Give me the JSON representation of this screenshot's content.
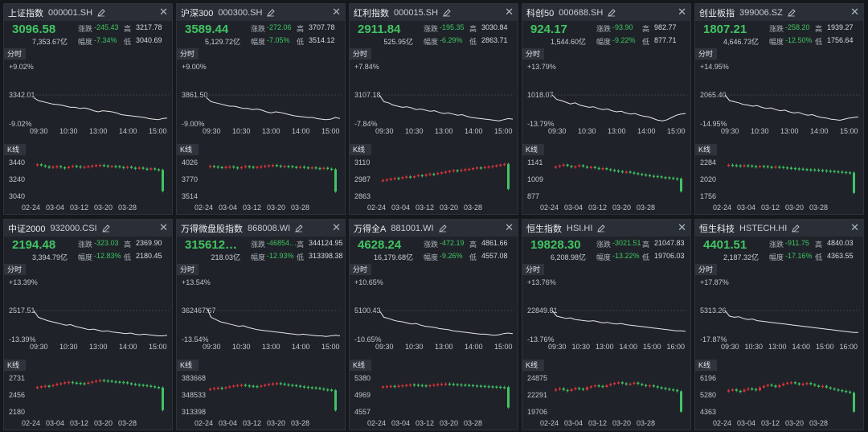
{
  "colors": {
    "up": "#e0323a",
    "down": "#41c463",
    "line": "#e6e6e6"
  },
  "labels": {
    "change": "涨跌",
    "amplitude": "幅度",
    "high": "高",
    "low": "低",
    "intraday": "分时",
    "kline": "K线"
  },
  "cards": [
    {
      "name": "上证指数",
      "code": "000001.SH",
      "price": "3096.58",
      "change": "-245.43",
      "amount": "7,353.67亿",
      "amplitude": "-7.34%",
      "high": "3217.78",
      "low": "3040.69",
      "intraday": {
        "top": "+9.02%",
        "mid": "3342.01",
        "bottom": "-9.02%",
        "times": [
          "09:30",
          "10:30",
          "13:00",
          "14:00",
          "15:00"
        ],
        "line": [
          0.55,
          0.6,
          0.62,
          0.64,
          0.66,
          0.67,
          0.68,
          0.7,
          0.72,
          0.72,
          0.74,
          0.73,
          0.75,
          0.78,
          0.8,
          0.78,
          0.79,
          0.8,
          0.82,
          0.85,
          0.86,
          0.87,
          0.88,
          0.89,
          0.9,
          0.92,
          0.93,
          0.94,
          0.92,
          0.91
        ]
      },
      "kline": {
        "high": "3440",
        "mid": "3240",
        "low": "3040",
        "dates": [
          "02-24",
          "03-04",
          "03-12",
          "03-20",
          "03-28"
        ],
        "values": [
          3420,
          3405,
          3395,
          3380,
          3392,
          3398,
          3385,
          3375,
          3390,
          3402,
          3396,
          3385,
          3392,
          3398,
          3405,
          3410,
          3412,
          3405,
          3395,
          3400,
          3398,
          3388,
          3385,
          3392,
          3380,
          3378,
          3382,
          3370,
          3365,
          3372,
          3362,
          3355,
          3108
        ]
      }
    },
    {
      "name": "沪深300",
      "code": "000300.SH",
      "price": "3589.44",
      "change": "-272.06",
      "amount": "5,129.72亿",
      "amplitude": "-7.05%",
      "high": "3707.78",
      "low": "3514.12",
      "intraday": {
        "top": "+9.00%",
        "mid": "3861.50",
        "bottom": "-9.00%",
        "times": [
          "09:30",
          "10:30",
          "13:00",
          "14:00",
          "15:00"
        ],
        "line": [
          0.55,
          0.62,
          0.64,
          0.66,
          0.68,
          0.7,
          0.7,
          0.72,
          0.74,
          0.74,
          0.76,
          0.75,
          0.77,
          0.8,
          0.82,
          0.8,
          0.81,
          0.83,
          0.85,
          0.87,
          0.88,
          0.89,
          0.9,
          0.9,
          0.92,
          0.93,
          0.94,
          0.93,
          0.9,
          0.92
        ]
      },
      "kline": {
        "high": "4026",
        "mid": "3770",
        "low": "3514",
        "dates": [
          "02-24",
          "03-04",
          "03-12",
          "03-20",
          "03-28"
        ],
        "values": [
          3975,
          3968,
          3960,
          3950,
          3962,
          3968,
          3955,
          3945,
          3958,
          3972,
          3965,
          3955,
          3962,
          3970,
          3978,
          3985,
          3990,
          3980,
          3970,
          3975,
          3972,
          3962,
          3958,
          3965,
          3955,
          3950,
          3955,
          3945,
          3940,
          3948,
          3935,
          3925,
          3595
        ]
      }
    },
    {
      "name": "红利指数",
      "code": "000015.SH",
      "price": "2911.84",
      "change": "-195.35",
      "amount": "525.95亿",
      "amplitude": "-6.29%",
      "high": "3030.84",
      "low": "2863.71",
      "intraday": {
        "top": "+7.84%",
        "mid": "3107.18",
        "bottom": "-7.84%",
        "times": [
          "09:30",
          "10:30",
          "13:00",
          "14:00",
          "15:00"
        ],
        "line": [
          0.5,
          0.62,
          0.64,
          0.68,
          0.7,
          0.72,
          0.71,
          0.73,
          0.76,
          0.75,
          0.77,
          0.79,
          0.78,
          0.81,
          0.83,
          0.82,
          0.84,
          0.86,
          0.85,
          0.88,
          0.9,
          0.91,
          0.92,
          0.93,
          0.94,
          0.95,
          0.96,
          0.94,
          0.92,
          0.93
        ]
      },
      "kline": {
        "high": "3110",
        "mid": "2987",
        "low": "2863",
        "dates": [
          "02-24",
          "03-04",
          "03-12",
          "03-20",
          "03-28"
        ],
        "values": [
          2985,
          2990,
          2995,
          3000,
          2998,
          3005,
          3010,
          3008,
          3012,
          3020,
          3015,
          3025,
          3030,
          3028,
          3035,
          3040,
          3045,
          3050,
          3055,
          3052,
          3058,
          3062,
          3065,
          3070,
          3075,
          3072,
          3078,
          3082,
          3085,
          3090,
          3095,
          3100,
          2920
        ]
      }
    },
    {
      "name": "科创50",
      "code": "000688.SH",
      "price": "924.17",
      "change": "-93.90",
      "amount": "1,544.60亿",
      "amplitude": "-9.22%",
      "high": "982.77",
      "low": "877.71",
      "intraday": {
        "top": "+13.79%",
        "mid": "1018.07",
        "bottom": "-13.79%",
        "times": [
          "09:30",
          "10:30",
          "13:00",
          "14:00",
          "15:00"
        ],
        "line": [
          0.5,
          0.58,
          0.6,
          0.63,
          0.66,
          0.64,
          0.68,
          0.7,
          0.72,
          0.71,
          0.74,
          0.76,
          0.75,
          0.78,
          0.8,
          0.79,
          0.82,
          0.84,
          0.83,
          0.86,
          0.88,
          0.89,
          0.92,
          0.95,
          0.96,
          0.94,
          0.9,
          0.86,
          0.84,
          0.83
        ]
      },
      "kline": {
        "high": "1141",
        "mid": "1009",
        "low": "877",
        "dates": [
          "02-24",
          "03-04",
          "03-12",
          "03-20",
          "03-28"
        ],
        "values": [
          1110,
          1118,
          1125,
          1115,
          1108,
          1112,
          1120,
          1110,
          1105,
          1108,
          1100,
          1095,
          1098,
          1090,
          1085,
          1080,
          1075,
          1070,
          1072,
          1065,
          1060,
          1055,
          1050,
          1045,
          1040,
          1038,
          1035,
          1030,
          1028,
          1025,
          1020,
          1018,
          920
        ]
      }
    },
    {
      "name": "创业板指",
      "code": "399006.SZ",
      "price": "1807.21",
      "change": "-258.20",
      "amount": "4,646.73亿",
      "amplitude": "-12.50%",
      "high": "1939.27",
      "low": "1756.64",
      "intraday": {
        "top": "+14.95%",
        "mid": "2065.40",
        "bottom": "-14.95%",
        "times": [
          "09:30",
          "10:30",
          "13:00",
          "14:00",
          "15:00"
        ],
        "line": [
          0.5,
          0.6,
          0.62,
          0.64,
          0.67,
          0.68,
          0.7,
          0.69,
          0.72,
          0.74,
          0.73,
          0.76,
          0.78,
          0.77,
          0.8,
          0.82,
          0.81,
          0.84,
          0.86,
          0.85,
          0.88,
          0.9,
          0.91,
          0.93,
          0.94,
          0.95,
          0.93,
          0.91,
          0.9,
          0.89
        ]
      },
      "kline": {
        "high": "2284",
        "mid": "2020",
        "low": "1756",
        "dates": [
          "02-24",
          "03-04",
          "03-12",
          "03-20",
          "03-28"
        ],
        "values": [
          2250,
          2245,
          2240,
          2235,
          2242,
          2238,
          2230,
          2225,
          2232,
          2228,
          2220,
          2215,
          2222,
          2218,
          2210,
          2205,
          2200,
          2195,
          2190,
          2185,
          2180,
          2178,
          2175,
          2170,
          2165,
          2160,
          2155,
          2150,
          2145,
          2140,
          2135,
          2130,
          1820
        ]
      }
    },
    {
      "name": "中证2000",
      "code": "932000.CSI",
      "price": "2194.48",
      "change": "-323.03",
      "amount": "3,394.79亿",
      "amplitude": "-12.83%",
      "high": "2369.90",
      "low": "2180.45",
      "intraday": {
        "top": "+13.39%",
        "mid": "2517.51",
        "bottom": "-13.39%",
        "times": [
          "09:30",
          "10:30",
          "13:00",
          "14:00",
          "15:00"
        ],
        "line": [
          0.5,
          0.62,
          0.65,
          0.68,
          0.7,
          0.72,
          0.74,
          0.76,
          0.75,
          0.78,
          0.8,
          0.82,
          0.84,
          0.83,
          0.85,
          0.87,
          0.86,
          0.88,
          0.89,
          0.9,
          0.91,
          0.9,
          0.92,
          0.93,
          0.92,
          0.93,
          0.94,
          0.95,
          0.95,
          0.94
        ]
      },
      "kline": {
        "high": "2731",
        "mid": "2456",
        "low": "2180",
        "dates": [
          "02-24",
          "03-04",
          "03-12",
          "03-20",
          "03-28"
        ],
        "values": [
          2590,
          2600,
          2610,
          2605,
          2620,
          2640,
          2650,
          2665,
          2670,
          2660,
          2655,
          2650,
          2645,
          2660,
          2675,
          2690,
          2700,
          2695,
          2690,
          2680,
          2675,
          2670,
          2665,
          2650,
          2640,
          2630,
          2625,
          2620,
          2610,
          2600,
          2590,
          2580,
          2220
        ]
      }
    },
    {
      "name": "万得微盘股指数",
      "code": "868008.WI",
      "price": "315612…",
      "change": "-46854…",
      "amount": "218.03亿",
      "amplitude": "-12.93%",
      "high": "344124.95",
      "low": "313398.38",
      "intraday": {
        "top": "+13.54%",
        "mid": "362467.67",
        "bottom": "-13.54%",
        "times": [
          "09:30",
          "10:30",
          "13:00",
          "14:00",
          "15:00"
        ],
        "line": [
          0.45,
          0.62,
          0.66,
          0.7,
          0.72,
          0.74,
          0.76,
          0.78,
          0.77,
          0.8,
          0.82,
          0.84,
          0.85,
          0.86,
          0.87,
          0.88,
          0.89,
          0.9,
          0.91,
          0.92,
          0.93,
          0.92,
          0.93,
          0.94,
          0.95,
          0.95,
          0.96,
          0.95,
          0.94,
          0.95
        ]
      },
      "kline": {
        "high": "383668",
        "mid": "348533",
        "low": "313398",
        "dates": [
          "02-24",
          "03-04",
          "03-12",
          "03-20",
          "03-28"
        ],
        "values": [
          362000,
          363500,
          364200,
          363000,
          365000,
          367000,
          368500,
          369500,
          370200,
          369000,
          368000,
          367500,
          366800,
          368500,
          370000,
          371500,
          372800,
          373500,
          372500,
          371000,
          370000,
          369500,
          368200,
          367000,
          366000,
          365200,
          364800,
          364000,
          362500,
          361000,
          360200,
          359000,
          318000
        ]
      }
    },
    {
      "name": "万得全A",
      "code": "881001.WI",
      "price": "4628.24",
      "change": "-472.19",
      "amount": "16,179.68亿",
      "amplitude": "-9.26%",
      "high": "4861.66",
      "low": "4557.08",
      "intraday": {
        "top": "+10.65%",
        "mid": "5100.43",
        "bottom": "-10.65%",
        "times": [
          "09:30",
          "10:30",
          "13:00",
          "14:00",
          "15:00"
        ],
        "line": [
          0.5,
          0.62,
          0.64,
          0.67,
          0.69,
          0.7,
          0.72,
          0.74,
          0.73,
          0.76,
          0.78,
          0.79,
          0.8,
          0.82,
          0.83,
          0.84,
          0.86,
          0.87,
          0.88,
          0.89,
          0.9,
          0.91,
          0.92,
          0.92,
          0.93,
          0.94,
          0.93,
          0.91,
          0.9,
          0.91
        ]
      },
      "kline": {
        "high": "5380",
        "mid": "4969",
        "low": "4557",
        "dates": [
          "02-24",
          "03-04",
          "03-12",
          "03-20",
          "03-28"
        ],
        "values": [
          5180,
          5190,
          5195,
          5185,
          5200,
          5210,
          5220,
          5230,
          5225,
          5215,
          5210,
          5205,
          5212,
          5225,
          5235,
          5245,
          5250,
          5245,
          5235,
          5230,
          5225,
          5220,
          5215,
          5205,
          5200,
          5195,
          5190,
          5185,
          5180,
          5175,
          5170,
          5165,
          4680
        ]
      }
    },
    {
      "name": "恒生指数",
      "code": "HSI.HI",
      "price": "19828.30",
      "change": "-3021.51",
      "amount": "6,208.98亿",
      "amplitude": "-13.22%",
      "high": "21047.83",
      "low": "19706.03",
      "intraday": {
        "top": "+13.76%",
        "mid": "22849.81",
        "bottom": "-13.76%",
        "times": [
          "09:30",
          "10:30",
          "13:00",
          "14:00",
          "15:00",
          "16:00"
        ],
        "line": [
          0.5,
          0.6,
          0.62,
          0.64,
          0.63,
          0.66,
          0.67,
          0.68,
          0.69,
          0.68,
          0.7,
          0.72,
          0.71,
          0.73,
          0.74,
          0.73,
          0.75,
          0.76,
          0.77,
          0.78,
          0.79,
          0.8,
          0.81,
          0.82,
          0.83,
          0.84,
          0.85,
          0.86,
          0.86,
          0.87
        ]
      },
      "kline": {
        "high": "24875",
        "mid": "22291",
        "low": "19706",
        "dates": [
          "02-24",
          "03-04",
          "03-12",
          "03-20",
          "03-28"
        ],
        "values": [
          23200,
          23350,
          23100,
          22950,
          23200,
          23400,
          23300,
          23150,
          23500,
          23650,
          23800,
          23700,
          23550,
          23800,
          24000,
          24150,
          24250,
          24100,
          23950,
          24050,
          24200,
          24000,
          23850,
          23700,
          23800,
          23650,
          23500,
          23400,
          23300,
          23200,
          23100,
          22900,
          19850
        ]
      }
    },
    {
      "name": "恒生科技",
      "code": "HSTECH.HI",
      "price": "4401.51",
      "change": "-911.75",
      "amount": "2,187.32亿",
      "amplitude": "-17.16%",
      "high": "4840.03",
      "low": "4363.55",
      "intraday": {
        "top": "+17.87%",
        "mid": "5313.26",
        "bottom": "-17.87%",
        "times": [
          "09:30",
          "10:30",
          "13:00",
          "14:00",
          "15:00",
          "16:00"
        ],
        "line": [
          0.5,
          0.6,
          0.62,
          0.61,
          0.64,
          0.66,
          0.65,
          0.68,
          0.69,
          0.7,
          0.71,
          0.72,
          0.73,
          0.74,
          0.75,
          0.76,
          0.77,
          0.78,
          0.79,
          0.8,
          0.81,
          0.82,
          0.83,
          0.84,
          0.85,
          0.86,
          0.87,
          0.88,
          0.89,
          0.89
        ]
      },
      "kline": {
        "high": "6196",
        "mid": "5280",
        "low": "4363",
        "dates": [
          "02-24",
          "03-04",
          "03-12",
          "03-20",
          "03-28"
        ],
        "values": [
          5550,
          5600,
          5520,
          5480,
          5580,
          5650,
          5620,
          5550,
          5700,
          5780,
          5850,
          5800,
          5720,
          5820,
          5900,
          5950,
          5980,
          5920,
          5850,
          5900,
          5940,
          5870,
          5800,
          5750,
          5780,
          5700,
          5650,
          5600,
          5560,
          5520,
          5480,
          5420,
          4420
        ]
      }
    }
  ]
}
